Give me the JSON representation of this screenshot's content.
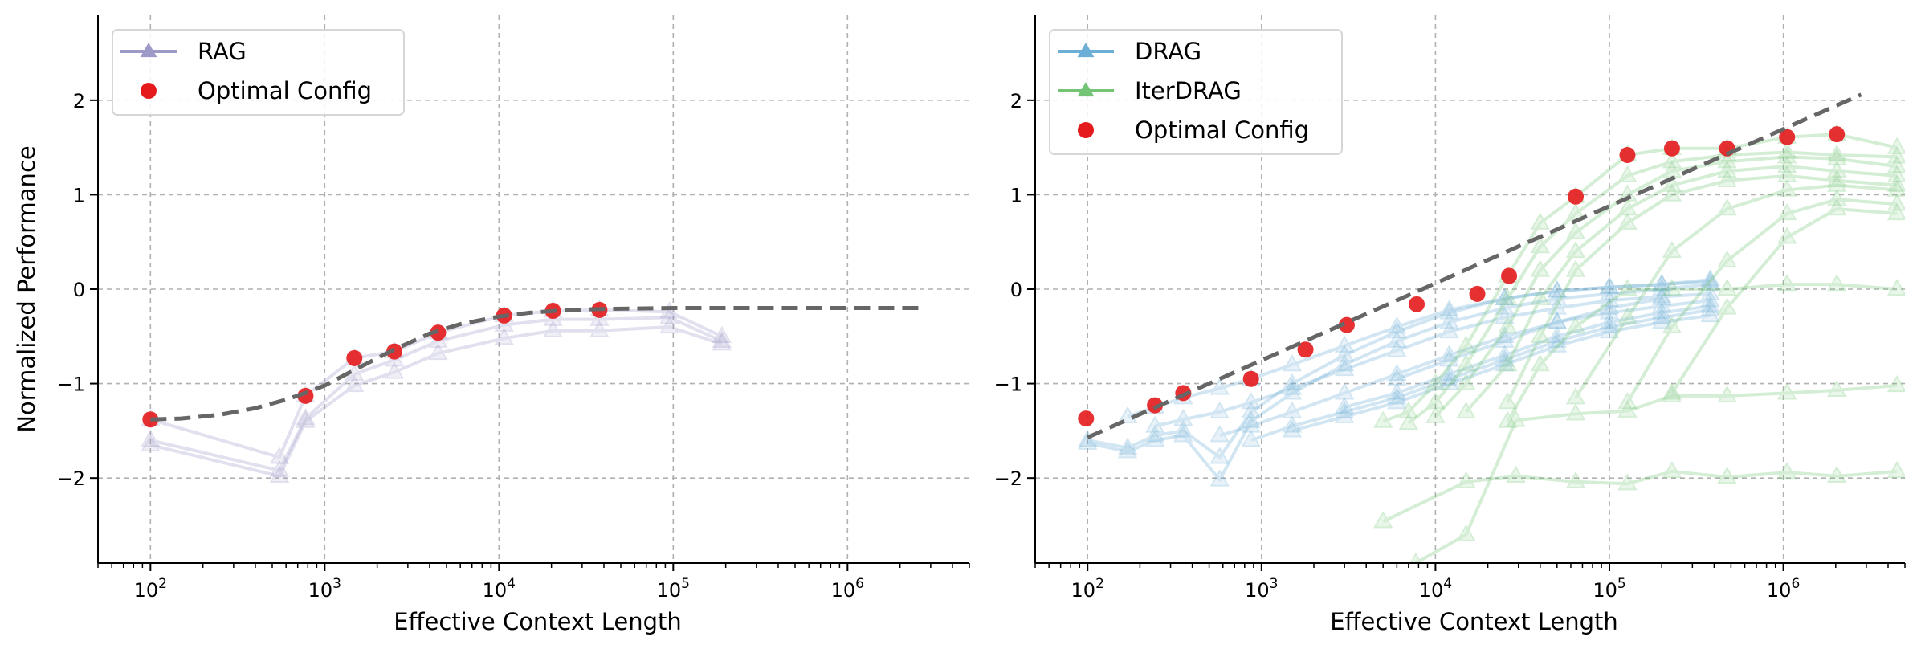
{
  "chart_data": [
    {
      "type": "line",
      "panel": "left",
      "title": "",
      "xlabel": "Effective Context Length",
      "ylabel": "Normalized Performance",
      "xscale": "log",
      "xlim": [
        50,
        5000000
      ],
      "ylim": [
        -2.9,
        2.9
      ],
      "xticks": [
        100,
        1000,
        10000,
        100000,
        1000000
      ],
      "xtick_labels": [
        {
          "base": "10",
          "exp": "2"
        },
        {
          "base": "10",
          "exp": "3"
        },
        {
          "base": "10",
          "exp": "4"
        },
        {
          "base": "10",
          "exp": "5"
        },
        {
          "base": "10",
          "exp": "6"
        }
      ],
      "yticks": [
        -2,
        -1,
        0,
        1,
        2
      ],
      "ytick_labels": [
        "−2",
        "−1",
        "0",
        "1",
        "2"
      ],
      "grid": true,
      "legend_position": "top-left",
      "legend": [
        {
          "label": "RAG",
          "kind": "line-triangle",
          "color": "#9e9ac8"
        },
        {
          "label": "Optimal Config",
          "kind": "dot",
          "color": "#e41a1c"
        }
      ],
      "series": [
        {
          "name": "RAG",
          "color": "#9e9ac8",
          "x": [
            100,
            550,
            776,
            1480,
            2510,
            4470,
            10700,
            20400,
            37700,
            95000,
            190000
          ],
          "values": [
            -1.38,
            -1.78,
            -1.13,
            -0.73,
            -0.66,
            -0.46,
            -0.28,
            -0.23,
            -0.22,
            -0.24,
            -0.5
          ]
        },
        {
          "name": "RAG",
          "color": "#9e9ac8",
          "x": [
            100,
            550,
            776,
            1480,
            2510,
            4470,
            10700,
            20400,
            37700,
            95000,
            190000
          ],
          "values": [
            -1.6,
            -1.92,
            -1.37,
            -0.9,
            -0.75,
            -0.55,
            -0.38,
            -0.32,
            -0.32,
            -0.3,
            -0.55
          ]
        },
        {
          "name": "RAG",
          "color": "#9e9ac8",
          "x": [
            100,
            550,
            776,
            1480,
            2510,
            4470,
            10700,
            20400,
            37700,
            95000,
            190000
          ],
          "values": [
            -1.65,
            -1.98,
            -1.4,
            -1.02,
            -0.88,
            -0.68,
            -0.52,
            -0.44,
            -0.44,
            -0.4,
            -0.58
          ]
        }
      ],
      "optimal_config": {
        "color": "#e41a1c",
        "x": [
          100,
          776,
          1480,
          2510,
          4470,
          10700,
          20400,
          37700
        ],
        "values": [
          -1.38,
          -1.13,
          -0.73,
          -0.66,
          -0.46,
          -0.28,
          -0.23,
          -0.22
        ]
      },
      "fit_curve": {
        "color": "#666666",
        "style": "dashed",
        "x": [
          100,
          150,
          250,
          400,
          600,
          800,
          1000,
          1500,
          2500,
          4000,
          6000,
          10000,
          15000,
          25000,
          40000,
          100000,
          300000,
          1000000,
          2800000
        ],
        "values": [
          -1.38,
          -1.37,
          -1.33,
          -1.26,
          -1.17,
          -1.09,
          -1.02,
          -0.85,
          -0.64,
          -0.47,
          -0.37,
          -0.29,
          -0.25,
          -0.22,
          -0.21,
          -0.2,
          -0.2,
          -0.2,
          -0.2
        ]
      }
    },
    {
      "type": "line",
      "panel": "right",
      "title": "",
      "xlabel": "Effective Context Length",
      "ylabel": "",
      "xscale": "log",
      "xlim": [
        50,
        5000000
      ],
      "ylim": [
        -2.9,
        2.9
      ],
      "xticks": [
        100,
        1000,
        10000,
        100000,
        1000000
      ],
      "xtick_labels": [
        {
          "base": "10",
          "exp": "2"
        },
        {
          "base": "10",
          "exp": "3"
        },
        {
          "base": "10",
          "exp": "4"
        },
        {
          "base": "10",
          "exp": "5"
        },
        {
          "base": "10",
          "exp": "6"
        }
      ],
      "yticks": [
        -2,
        -1,
        0,
        1,
        2
      ],
      "ytick_labels": [
        "−2",
        "−1",
        "0",
        "1",
        "2"
      ],
      "grid": true,
      "legend_position": "top-left",
      "legend": [
        {
          "label": "DRAG",
          "kind": "line-triangle",
          "color": "#6baed6"
        },
        {
          "label": "IterDRAG",
          "kind": "line-triangle",
          "color": "#74c476"
        },
        {
          "label": "Optimal Config",
          "kind": "dot",
          "color": "#e41a1c"
        }
      ],
      "series": [
        {
          "name": "DRAG",
          "color": "#6baed6",
          "x": [
            100,
            170,
            244,
            355,
            575,
            870,
            1500,
            3000,
            6000,
            12000,
            25000,
            50000,
            100000,
            200000,
            380000
          ],
          "values": [
            -1.63,
            -1.72,
            -1.6,
            -1.55,
            -2.02,
            -1.4,
            -1.1,
            -0.8,
            -0.55,
            -0.35,
            -0.2,
            -0.1,
            -0.05,
            0.0,
            0.05
          ]
        },
        {
          "name": "DRAG",
          "color": "#6baed6",
          "x": [
            100,
            170,
            244,
            355,
            575,
            870,
            1500,
            3000,
            6000,
            12000,
            25000,
            50000,
            100000,
            200000,
            380000
          ],
          "values": [
            -1.6,
            -1.68,
            -1.55,
            -1.5,
            -1.78,
            -1.3,
            -1.0,
            -0.7,
            -0.45,
            -0.25,
            -0.1,
            -0.02,
            0.02,
            0.05,
            0.1
          ]
        },
        {
          "name": "DRAG",
          "color": "#6baed6",
          "x": [
            170,
            244,
            355,
            575,
            870,
            1500,
            3000,
            6000,
            12000,
            25000,
            50000,
            100000,
            200000,
            380000
          ],
          "values": [
            -1.35,
            -1.25,
            -1.15,
            -1.05,
            -0.95,
            -0.8,
            -0.6,
            -0.4,
            -0.22,
            -0.1,
            -0.02,
            0.02,
            0.05,
            0.08
          ]
        },
        {
          "name": "DRAG",
          "color": "#6baed6",
          "x": [
            244,
            355,
            575,
            870,
            1500,
            3000,
            6000,
            12000,
            25000,
            50000,
            100000,
            200000,
            380000
          ],
          "values": [
            -1.45,
            -1.38,
            -1.3,
            -1.2,
            -1.05,
            -0.85,
            -0.65,
            -0.45,
            -0.3,
            -0.2,
            -0.12,
            -0.08,
            -0.05
          ]
        },
        {
          "name": "DRAG",
          "color": "#6baed6",
          "x": [
            575,
            870,
            1500,
            3000,
            6000,
            12000,
            25000,
            50000,
            100000,
            200000,
            380000
          ],
          "values": [
            -1.55,
            -1.45,
            -1.3,
            -1.1,
            -0.9,
            -0.7,
            -0.5,
            -0.35,
            -0.25,
            -0.18,
            -0.12
          ]
        },
        {
          "name": "DRAG",
          "color": "#6baed6",
          "x": [
            870,
            1500,
            3000,
            6000,
            12000,
            25000,
            50000,
            100000,
            200000,
            380000
          ],
          "values": [
            -1.6,
            -1.45,
            -1.3,
            -1.15,
            -0.95,
            -0.75,
            -0.55,
            -0.4,
            -0.3,
            -0.22
          ]
        },
        {
          "name": "DRAG",
          "color": "#6baed6",
          "x": [
            1500,
            3000,
            6000,
            12000,
            25000,
            50000,
            100000,
            200000,
            380000
          ],
          "values": [
            -1.5,
            -1.35,
            -1.2,
            -1.0,
            -0.8,
            -0.6,
            -0.45,
            -0.35,
            -0.28
          ]
        },
        {
          "name": "DRAG",
          "color": "#6baed6",
          "x": [
            3000,
            6000,
            12000,
            25000,
            50000,
            100000,
            200000,
            380000
          ],
          "values": [
            -1.25,
            -1.1,
            -0.9,
            -0.7,
            -0.5,
            -0.35,
            -0.25,
            -0.18
          ]
        },
        {
          "name": "DRAG",
          "color": "#6baed6",
          "x": [
            6000,
            12000,
            25000,
            50000,
            100000,
            200000
          ],
          "values": [
            -0.95,
            -0.75,
            -0.55,
            -0.35,
            -0.2,
            -0.1
          ]
        },
        {
          "name": "IterDRAG",
          "color": "#74c476",
          "x": [
            5000,
            7000,
            10000,
            15000,
            26000,
            40000,
            64000,
            127000,
            229000,
            475000,
            1050000,
            2030000,
            4500000
          ],
          "values": [
            -1.4,
            -1.3,
            -1.0,
            -0.6,
            0.14,
            0.7,
            0.98,
            1.42,
            1.49,
            1.49,
            1.61,
            1.64,
            1.5
          ]
        },
        {
          "name": "IterDRAG",
          "color": "#74c476",
          "x": [
            7000,
            10000,
            15000,
            26000,
            40000,
            64000,
            127000,
            229000,
            475000,
            1050000,
            2030000,
            4500000
          ],
          "values": [
            -1.42,
            -1.2,
            -0.8,
            -0.1,
            0.45,
            0.8,
            1.2,
            1.35,
            1.42,
            1.45,
            1.42,
            1.4
          ]
        },
        {
          "name": "IterDRAG",
          "color": "#74c476",
          "x": [
            10000,
            15000,
            26000,
            40000,
            64000,
            127000,
            229000,
            475000,
            1050000,
            2030000,
            4500000
          ],
          "values": [
            -1.35,
            -1.0,
            -0.4,
            0.2,
            0.6,
            1.0,
            1.25,
            1.35,
            1.4,
            1.38,
            1.3
          ]
        },
        {
          "name": "IterDRAG",
          "color": "#74c476",
          "x": [
            15000,
            26000,
            40000,
            64000,
            127000,
            229000,
            475000,
            1050000,
            2030000,
            4500000
          ],
          "values": [
            -1.3,
            -0.8,
            -0.1,
            0.4,
            0.85,
            1.1,
            1.25,
            1.3,
            1.25,
            1.2
          ]
        },
        {
          "name": "IterDRAG",
          "color": "#74c476",
          "x": [
            26000,
            40000,
            64000,
            127000,
            229000,
            475000,
            1050000,
            2030000,
            4500000
          ],
          "values": [
            -1.2,
            -0.5,
            0.2,
            0.7,
            1.0,
            1.15,
            1.2,
            1.15,
            1.1
          ]
        },
        {
          "name": "IterDRAG",
          "color": "#74c476",
          "x": [
            64000,
            127000,
            229000,
            475000,
            1050000,
            2030000,
            4500000
          ],
          "values": [
            -1.15,
            -0.3,
            0.4,
            0.85,
            1.05,
            1.1,
            1.05
          ]
        },
        {
          "name": "IterDRAG",
          "color": "#74c476",
          "x": [
            127000,
            229000,
            475000,
            1050000,
            2030000,
            4500000
          ],
          "values": [
            -1.2,
            -0.4,
            0.3,
            0.8,
            0.95,
            0.9
          ]
        },
        {
          "name": "IterDRAG",
          "color": "#74c476",
          "x": [
            229000,
            475000,
            1050000,
            2030000,
            4500000
          ],
          "values": [
            -1.1,
            -0.2,
            0.55,
            0.85,
            0.8
          ]
        },
        {
          "name": "IterDRAG",
          "color": "#74c476",
          "x": [
            26000,
            40000,
            64000,
            127000,
            229000,
            475000,
            1050000,
            2030000,
            4500000
          ],
          "values": [
            -1.4,
            -0.8,
            -0.4,
            0.0,
            0.0,
            0.0,
            0.05,
            0.05,
            0.0
          ]
        },
        {
          "name": "IterDRAG",
          "color": "#74c476",
          "x": [
            7700,
            15000,
            29000,
            64000,
            127000,
            229000,
            475000,
            1050000,
            2030000,
            4500000
          ],
          "values": [
            -2.9,
            -2.6,
            -1.39,
            -1.32,
            -1.29,
            -1.13,
            -1.13,
            -1.1,
            -1.07,
            -1.02
          ]
        },
        {
          "name": "IterDRAG",
          "color": "#74c476",
          "x": [
            5000,
            15000,
            29000,
            64000,
            127000,
            229000,
            475000,
            1050000,
            2030000,
            4500000
          ],
          "values": [
            -2.46,
            -2.04,
            -1.98,
            -2.04,
            -2.06,
            -1.93,
            -1.99,
            -1.94,
            -1.98,
            -1.93
          ]
        }
      ],
      "optimal_config": {
        "color": "#e41a1c",
        "x": [
          98,
          244,
          355,
          870,
          1790,
          3090,
          7800,
          17400,
          26500,
          64000,
          127000,
          229000,
          475000,
          1050000,
          2030000
        ],
        "values": [
          -1.37,
          -1.23,
          -1.1,
          -0.95,
          -0.64,
          -0.38,
          -0.16,
          -0.05,
          0.14,
          0.98,
          1.42,
          1.49,
          1.49,
          1.61,
          1.64
        ]
      },
      "fit_curve": {
        "color": "#666666",
        "style": "dashed",
        "x": [
          100,
          2800000
        ],
        "values": [
          -1.57,
          2.06
        ]
      }
    }
  ]
}
